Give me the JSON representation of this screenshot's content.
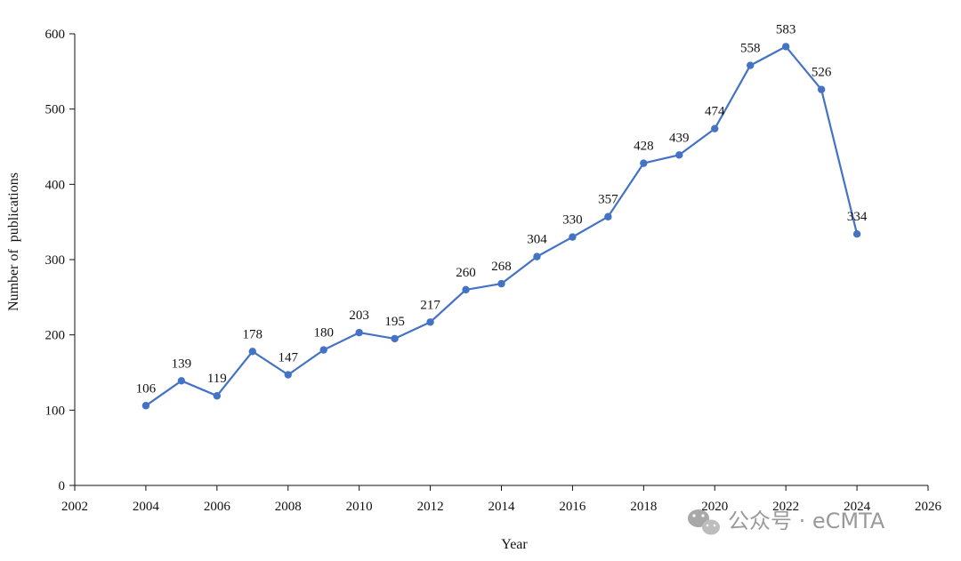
{
  "chart_data": {
    "type": "line",
    "title": "",
    "xlabel": "Year",
    "ylabel": "Number of  publications",
    "xlim": [
      2002,
      2026
    ],
    "ylim": [
      0,
      600
    ],
    "x_ticks": [
      2002,
      2004,
      2006,
      2008,
      2010,
      2012,
      2014,
      2016,
      2018,
      2020,
      2022,
      2024,
      2026
    ],
    "y_ticks": [
      0,
      100,
      200,
      300,
      400,
      500,
      600
    ],
    "grid": false,
    "color": "#4472C4",
    "series": [
      {
        "x": [
          2004,
          2005,
          2006,
          2007,
          2008,
          2009,
          2010,
          2011,
          2012,
          2013,
          2014,
          2015,
          2016,
          2017,
          2018,
          2019,
          2020,
          2021,
          2022,
          2023,
          2024
        ],
        "values": [
          106,
          139,
          119,
          178,
          147,
          180,
          203,
          195,
          217,
          260,
          268,
          304,
          330,
          357,
          428,
          439,
          474,
          558,
          583,
          526,
          334
        ]
      }
    ]
  },
  "watermark": {
    "text": "公众号 · eCMTA",
    "icon": "wechat-icon"
  }
}
